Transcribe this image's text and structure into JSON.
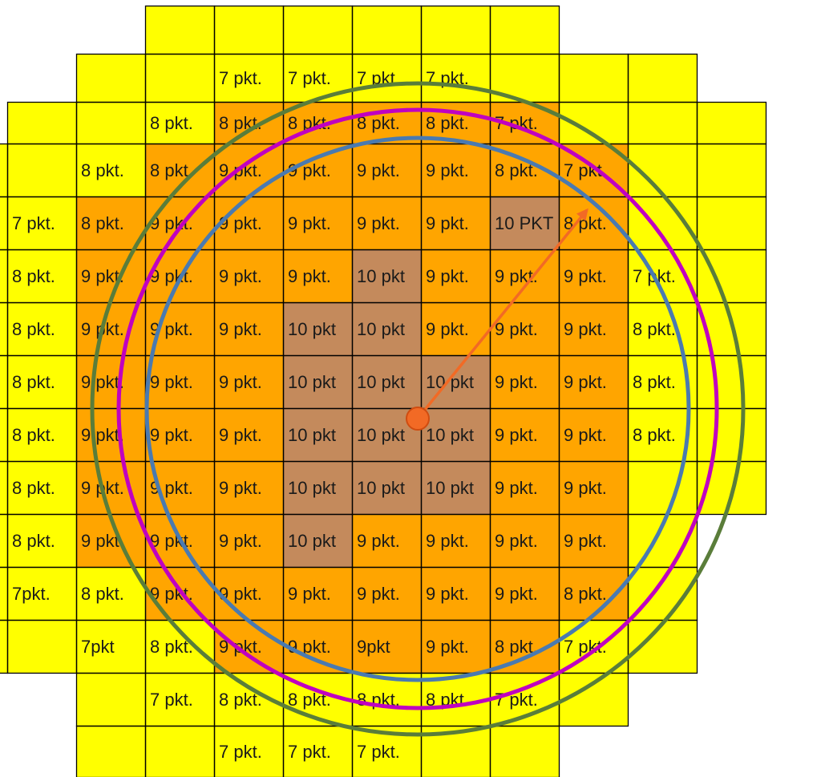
{
  "grid": {
    "colors": {
      "1": "#ffff00",
      "2": "#ffa500",
      "3": "#c48a5c",
      "line": "#000000",
      "glow": "#ffc000"
    },
    "rows": [
      {
        "fills": [
          0,
          0,
          0,
          1,
          1,
          1,
          1,
          1,
          1,
          0,
          0,
          0
        ],
        "labels": [
          "",
          "",
          "",
          "",
          "",
          "",
          "",
          "",
          "",
          "",
          "",
          ""
        ]
      },
      {
        "fills": [
          0,
          0,
          1,
          1,
          1,
          1,
          1,
          1,
          1,
          1,
          1,
          0
        ],
        "labels": [
          "",
          "",
          "",
          "",
          "7 pkt.",
          "7 pkt.",
          "7 pkt.",
          "7 pkt.",
          "",
          "",
          "",
          ""
        ]
      },
      {
        "fills": [
          0,
          1,
          1,
          1,
          2,
          2,
          2,
          2,
          2,
          1,
          1,
          1
        ],
        "labels": [
          "",
          "",
          "",
          "8 pkt.",
          "8 pkt.",
          "8 pkt.",
          "8 pkt.",
          "8 pkt.",
          "7 pkt.",
          "",
          "",
          ""
        ]
      },
      {
        "fills": [
          1,
          1,
          1,
          2,
          2,
          2,
          2,
          2,
          2,
          2,
          1,
          1
        ],
        "labels": [
          "",
          "",
          "8 pkt.",
          "8 pkt.",
          "9 pkt.",
          "9 pkt.",
          "9 pkt.",
          "9 pkt.",
          "8 pkt.",
          "7 pkt.",
          "",
          ""
        ]
      },
      {
        "fills": [
          1,
          1,
          2,
          2,
          2,
          2,
          2,
          2,
          3,
          2,
          1,
          1
        ],
        "labels": [
          "",
          "7 pkt.",
          "8 pkt.",
          "9 pkt.",
          "9 pkt.",
          "9 pkt.",
          "9 pkt.",
          "9 pkt.",
          "10 PKT",
          "8 pkt.",
          "",
          ""
        ]
      },
      {
        "fills": [
          1,
          1,
          2,
          2,
          2,
          2,
          3,
          2,
          2,
          2,
          1,
          1
        ],
        "labels": [
          "",
          "8 pkt.",
          "9 pkt.",
          "9 pkt.",
          "9 pkt.",
          "9 pkt.",
          "10 pkt",
          "9 pkt.",
          "9 pkt.",
          "9 pkt.",
          "7 pkt.",
          ""
        ]
      },
      {
        "fills": [
          1,
          1,
          2,
          2,
          2,
          3,
          3,
          2,
          2,
          2,
          1,
          1
        ],
        "labels": [
          "",
          "8 pkt.",
          "9 pkt.",
          "9 pkt.",
          "9 pkt.",
          "10 pkt",
          "10 pkt",
          "9 pkt.",
          "9 pkt.",
          "9 pkt.",
          "8 pkt.",
          ""
        ]
      },
      {
        "fills": [
          1,
          1,
          2,
          2,
          2,
          3,
          3,
          3,
          2,
          2,
          1,
          1
        ],
        "labels": [
          "",
          "8 pkt.",
          "9 pkt.",
          "9 pkt.",
          "9 pkt.",
          "10 pkt",
          "10 pkt",
          "10 pkt",
          "9 pkt.",
          "9 pkt.",
          "8 pkt.",
          ""
        ]
      },
      {
        "fills": [
          1,
          1,
          2,
          2,
          2,
          3,
          3,
          3,
          2,
          2,
          1,
          1
        ],
        "labels": [
          "",
          "8 pkt.",
          "9 pkt.",
          "9 pkt.",
          "9 pkt.",
          "10 pkt",
          "10 pkt",
          "10 pkt",
          "9 pkt.",
          "9 pkt.",
          "8 pkt.",
          ""
        ]
      },
      {
        "fills": [
          1,
          1,
          2,
          2,
          2,
          3,
          3,
          3,
          2,
          2,
          1,
          1
        ],
        "labels": [
          "",
          "8 pkt.",
          "9 pkt.",
          "9 pkt.",
          "9 pkt.",
          "10 pkt",
          "10 pkt",
          "10 pkt",
          "9 pkt.",
          "9 pkt.",
          "",
          ""
        ]
      },
      {
        "fills": [
          1,
          1,
          2,
          2,
          2,
          3,
          2,
          2,
          2,
          2,
          1,
          0
        ],
        "labels": [
          "",
          "8 pkt.",
          "9 pkt.",
          "9 pkt.",
          "9 pkt.",
          "10 pkt",
          "9 pkt.",
          "9 pkt.",
          "9 pkt.",
          "9 pkt.",
          "",
          ""
        ]
      },
      {
        "fills": [
          1,
          1,
          1,
          2,
          2,
          2,
          2,
          2,
          2,
          2,
          1,
          0
        ],
        "labels": [
          "",
          "7pkt.",
          "8 pkt.",
          "9 pkt.",
          "9 pkt.",
          "9 pkt.",
          "9 pkt.",
          "9 pkt.",
          "9 pkt.",
          "8 pkt.",
          "",
          ""
        ]
      },
      {
        "fills": [
          1,
          1,
          1,
          1,
          2,
          2,
          2,
          2,
          2,
          1,
          1,
          0
        ],
        "labels": [
          "",
          "",
          "7pkt",
          "8 pkt.",
          "9 pkt.",
          "9 pkt.",
          "9pkt",
          "9 pkt.",
          "8 pkt.",
          "7 pkt.",
          "",
          ""
        ]
      },
      {
        "fills": [
          0,
          0,
          1,
          1,
          1,
          1,
          1,
          1,
          1,
          1,
          0,
          0
        ],
        "labels": [
          "",
          "",
          "",
          "7 pkt.",
          "8 pkt.",
          "8 pkt.",
          "8 pkt.",
          "8 pkt.",
          "7 pkt.",
          "",
          "",
          ""
        ]
      },
      {
        "fills": [
          0,
          0,
          1,
          1,
          1,
          1,
          1,
          1,
          1,
          0,
          0,
          0
        ],
        "labels": [
          "",
          "",
          "",
          "",
          "7 pkt.",
          "7 pkt.",
          "7 pkt.",
          "",
          "",
          "",
          "",
          ""
        ]
      }
    ]
  },
  "circles": [
    {
      "name": "outer",
      "color": "#5a7d3a"
    },
    {
      "name": "middle",
      "color": "#c000c0"
    },
    {
      "name": "inner",
      "color": "#4a7ab0"
    }
  ],
  "arrow": {
    "color": "#f26a25"
  }
}
